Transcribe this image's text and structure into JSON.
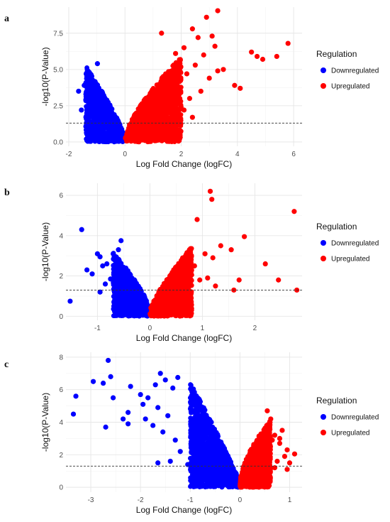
{
  "chart_data": [
    {
      "type": "scatter",
      "panel_label": "a",
      "xlabel": "Log Fold Change (logFC)",
      "ylabel": "-log10(P-Value)",
      "xlim": [
        -2.1,
        6.3
      ],
      "ylim": [
        -0.3,
        9.3
      ],
      "xticks": [
        -2,
        0,
        2,
        4,
        6
      ],
      "yticks": [
        0.0,
        2.5,
        5.0,
        7.5
      ],
      "ytick_labels": [
        "0.0",
        "2.5",
        "5.0",
        "7.5"
      ],
      "threshold_y": 1.3,
      "grid": true,
      "legend": {
        "title": "Regulation",
        "placement": "right",
        "entries": [
          {
            "label": "Downregulated",
            "color": "#0000ff"
          },
          {
            "label": "Upregulated",
            "color": "#ff0000"
          }
        ]
      },
      "series": [
        {
          "name": "Downregulated",
          "color": "#0000ff",
          "envelope": {
            "xmin": -1.4,
            "ymax": 5.0,
            "exponent": 0.8,
            "count": 900
          },
          "outliers": [
            [
              -0.98,
              5.4
            ],
            [
              -1.38,
              4.7
            ],
            [
              -1.45,
              3.9
            ],
            [
              -1.3,
              3.3
            ],
            [
              -1.55,
              2.2
            ],
            [
              -1.65,
              3.5
            ],
            [
              -1.2,
              2.6
            ]
          ]
        },
        {
          "name": "Upregulated",
          "color": "#ff0000",
          "envelope": {
            "xmax": 2.0,
            "ymax": 5.6,
            "exponent": 0.7,
            "count": 1300
          },
          "outliers": [
            [
              3.3,
              9.05
            ],
            [
              2.9,
              8.6
            ],
            [
              2.4,
              7.8
            ],
            [
              1.3,
              7.5
            ],
            [
              2.6,
              7.2
            ],
            [
              3.1,
              7.3
            ],
            [
              3.2,
              6.6
            ],
            [
              4.5,
              6.2
            ],
            [
              5.8,
              6.8
            ],
            [
              4.7,
              5.9
            ],
            [
              4.9,
              5.7
            ],
            [
              5.4,
              5.9
            ],
            [
              3.5,
              5.0
            ],
            [
              3.3,
              4.9
            ],
            [
              3.9,
              3.9
            ],
            [
              4.1,
              3.7
            ],
            [
              2.1,
              6.5
            ],
            [
              2.8,
              6.0
            ],
            [
              1.8,
              6.1
            ],
            [
              2.5,
              5.3
            ],
            [
              2.2,
              4.7
            ],
            [
              3.0,
              4.4
            ],
            [
              1.9,
              3.8
            ],
            [
              2.7,
              3.5
            ],
            [
              2.3,
              3.0
            ],
            [
              1.6,
              2.5
            ],
            [
              2.4,
              1.7
            ],
            [
              2.1,
              2.2
            ]
          ]
        }
      ]
    },
    {
      "type": "scatter",
      "panel_label": "b",
      "xlabel": "Log Fold Change (logFC)",
      "ylabel": "-log10(P-Value)",
      "xlim": [
        -1.6,
        2.9
      ],
      "ylim": [
        -0.2,
        6.6
      ],
      "xticks": [
        -1,
        0,
        1,
        2
      ],
      "yticks": [
        0,
        2,
        4,
        6
      ],
      "ytick_labels": [
        "0",
        "2",
        "4",
        "6"
      ],
      "threshold_y": 1.3,
      "grid": true,
      "legend": {
        "title": "Regulation",
        "placement": "right",
        "entries": [
          {
            "label": "Downregulated",
            "color": "#0000ff"
          },
          {
            "label": "Upregulated",
            "color": "#ff0000"
          }
        ]
      },
      "series": [
        {
          "name": "Downregulated",
          "color": "#0000ff",
          "envelope": {
            "xmin": -0.7,
            "ymax": 2.9,
            "exponent": 0.7,
            "count": 800
          },
          "outliers": [
            [
              -1.3,
              4.3
            ],
            [
              -0.55,
              3.75
            ],
            [
              -0.7,
              3.1
            ],
            [
              -0.95,
              2.95
            ],
            [
              -0.82,
              2.6
            ],
            [
              -1.1,
              2.1
            ],
            [
              -0.75,
              1.85
            ],
            [
              -1.52,
              0.75
            ],
            [
              -1.2,
              2.3
            ],
            [
              -0.6,
              3.3
            ],
            [
              -0.9,
              2.5
            ],
            [
              -0.85,
              1.6
            ],
            [
              -0.95,
              1.2
            ],
            [
              -0.62,
              2.4
            ],
            [
              -1.0,
              3.1
            ]
          ]
        },
        {
          "name": "Upregulated",
          "color": "#ff0000",
          "envelope": {
            "xmax": 0.8,
            "ymax": 3.2,
            "exponent": 0.75,
            "count": 1000
          },
          "outliers": [
            [
              1.15,
              6.2
            ],
            [
              1.18,
              5.8
            ],
            [
              2.75,
              5.2
            ],
            [
              0.9,
              4.8
            ],
            [
              1.8,
              3.95
            ],
            [
              1.55,
              3.3
            ],
            [
              1.35,
              3.5
            ],
            [
              1.05,
              3.1
            ],
            [
              2.2,
              2.6
            ],
            [
              1.7,
              1.8
            ],
            [
              2.45,
              1.8
            ],
            [
              1.2,
              2.9
            ],
            [
              0.95,
              1.8
            ],
            [
              1.25,
              1.5
            ],
            [
              0.85,
              2.5
            ],
            [
              2.8,
              1.3
            ],
            [
              1.1,
              1.9
            ],
            [
              1.6,
              1.3
            ]
          ]
        }
      ]
    },
    {
      "type": "scatter",
      "panel_label": "c",
      "xlabel": "Log Fold Change (logFC)",
      "ylabel": "-log10(P-Value)",
      "xlim": [
        -3.5,
        1.25
      ],
      "ylim": [
        -0.3,
        8.3
      ],
      "xticks": [
        -3,
        -2,
        -1,
        0,
        1
      ],
      "yticks": [
        0,
        2,
        4,
        6,
        8
      ],
      "ytick_labels": [
        "0",
        "2",
        "4",
        "6",
        "8"
      ],
      "threshold_y": 1.3,
      "grid": true,
      "legend": {
        "title": "Regulation",
        "placement": "right",
        "entries": [
          {
            "label": "Downregulated",
            "color": "#0000ff"
          },
          {
            "label": "Upregulated",
            "color": "#ff0000"
          }
        ]
      },
      "series": [
        {
          "name": "Downregulated",
          "color": "#0000ff",
          "envelope": {
            "xmin": -1.0,
            "ymax": 6.2,
            "exponent": 0.9,
            "count": 1300
          },
          "outliers": [
            [
              -2.65,
              7.8
            ],
            [
              -3.3,
              5.6
            ],
            [
              -3.35,
              4.5
            ],
            [
              -2.75,
              6.4
            ],
            [
              -2.6,
              6.8
            ],
            [
              -2.95,
              6.5
            ],
            [
              -2.7,
              3.7
            ],
            [
              -2.55,
              5.5
            ],
            [
              -2.2,
              6.2
            ],
            [
              -2.0,
              5.7
            ],
            [
              -1.95,
              5.1
            ],
            [
              -2.25,
              4.6
            ],
            [
              -2.25,
              3.9
            ],
            [
              -2.35,
              4.2
            ],
            [
              -1.6,
              7.0
            ],
            [
              -1.7,
              6.3
            ],
            [
              -1.85,
              5.5
            ],
            [
              -1.5,
              6.6
            ],
            [
              -1.25,
              6.75
            ],
            [
              -1.35,
              6.1
            ],
            [
              -1.65,
              4.9
            ],
            [
              -1.45,
              4.4
            ],
            [
              -1.9,
              4.2
            ],
            [
              -1.75,
              3.8
            ],
            [
              -1.55,
              3.4
            ],
            [
              -1.3,
              2.9
            ],
            [
              -1.2,
              2.2
            ],
            [
              -1.4,
              1.6
            ],
            [
              -1.65,
              1.5
            ],
            [
              -1.05,
              1.4
            ]
          ]
        },
        {
          "name": "Upregulated",
          "color": "#ff0000",
          "envelope": {
            "xmax": 0.62,
            "ymax": 3.9,
            "exponent": 0.6,
            "count": 1000
          },
          "outliers": [
            [
              0.55,
              4.7
            ],
            [
              0.62,
              4.2
            ],
            [
              0.7,
              3.2
            ],
            [
              0.85,
              3.5
            ],
            [
              0.8,
              2.7
            ],
            [
              0.95,
              2.3
            ],
            [
              1.1,
              2.05
            ],
            [
              0.9,
              1.9
            ],
            [
              0.75,
              1.6
            ],
            [
              0.65,
              2.9
            ],
            [
              1.0,
              1.5
            ],
            [
              0.7,
              1.2
            ],
            [
              0.95,
              1.1
            ],
            [
              0.8,
              3.0
            ],
            [
              0.6,
              3.8
            ]
          ]
        }
      ]
    }
  ]
}
